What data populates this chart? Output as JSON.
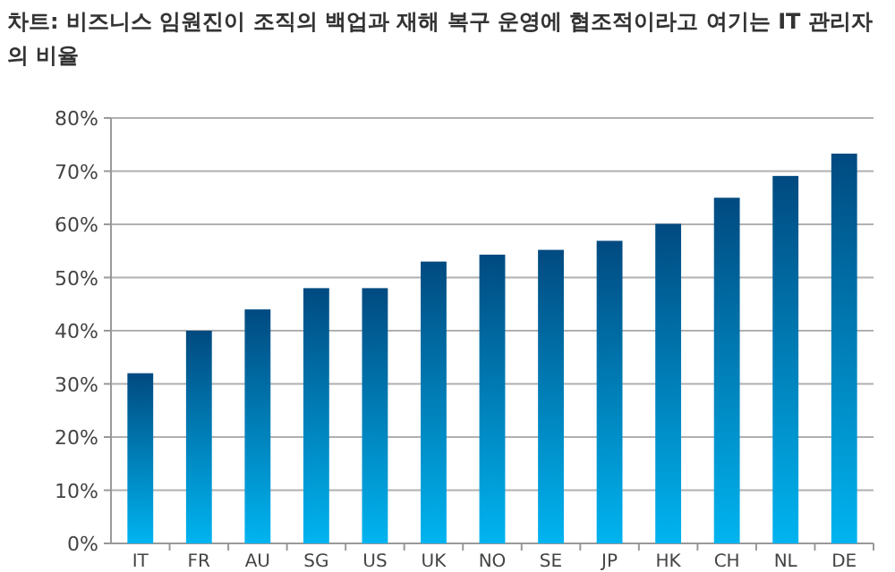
{
  "chart_data": {
    "type": "bar",
    "title": "차트: 비즈니스 임원진이 조직의 백업과 재해 복구 운영에 협조적이라고 여기는 IT 관리자의 비율",
    "categories": [
      "IT",
      "FR",
      "AU",
      "SG",
      "US",
      "UK",
      "NO",
      "SE",
      "JP",
      "HK",
      "CH",
      "NL",
      "DE"
    ],
    "values": [
      32,
      40,
      44,
      48,
      48,
      53,
      54.3,
      55.2,
      56.9,
      60.1,
      65,
      69.1,
      73.3
    ],
    "color": "#004a80",
    "ylim": [
      0,
      80
    ],
    "yticks": [
      {
        "value": 0,
        "label": "0%"
      },
      {
        "value": 10,
        "label": "10%"
      },
      {
        "value": 20,
        "label": "20%"
      },
      {
        "value": 30,
        "label": "30%"
      },
      {
        "value": 40,
        "label": "40%"
      },
      {
        "value": 50,
        "label": "50%"
      },
      {
        "value": 60,
        "label": "60%"
      },
      {
        "value": 70,
        "label": "70%"
      },
      {
        "value": 80,
        "label": "80%"
      }
    ],
    "grid": "y"
  }
}
